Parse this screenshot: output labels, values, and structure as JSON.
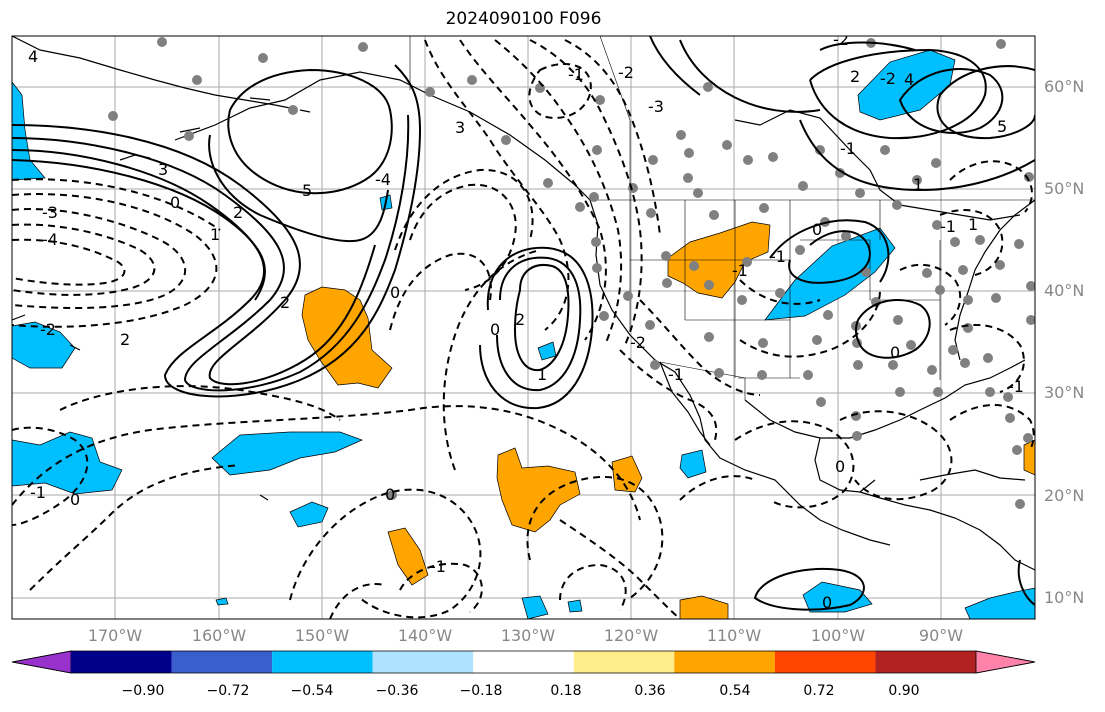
{
  "title": "2024090100 F096",
  "map": {
    "lat_labels": [
      "60°N",
      "50°N",
      "40°N",
      "30°N",
      "20°N",
      "10°N"
    ],
    "lon_labels": [
      "170°W",
      "160°W",
      "150°W",
      "140°W",
      "130°W",
      "120°W",
      "110°W",
      "100°W",
      "90°W"
    ],
    "contour_labels": [
      "4",
      "3",
      "-4",
      "3",
      "-3",
      "0",
      "5",
      "-4",
      "2",
      "1",
      "-2",
      "2",
      "2",
      "0",
      "0",
      "1",
      "-1",
      "2",
      "-2",
      "4",
      "5",
      "2",
      "-1",
      "-2",
      "-3",
      "0",
      "0",
      "-2",
      "-2",
      "-1",
      "1",
      "1",
      "-1",
      "-1",
      "0",
      "0",
      "-1",
      "0",
      "-1",
      "-1",
      "0",
      "-1"
    ],
    "colors": {
      "positive_shading": "#ffa500",
      "negative_shading": "#00bfff",
      "contour": "#000000",
      "gridline": "#aaaaaa",
      "station_marker": "#808080",
      "axis_label": "#888888"
    }
  },
  "colorbar": {
    "ticks": [
      "−0.90",
      "−0.72",
      "−0.54",
      "−0.36",
      "−0.18",
      "0.18",
      "0.36",
      "0.54",
      "0.72",
      "0.90"
    ],
    "colors": [
      "#9932cc",
      "#00008b",
      "#3a5fcd",
      "#00bfff",
      "#b0e2ff",
      "#ffffff",
      "#ffec8b",
      "#ffa500",
      "#ff4500",
      "#b22222",
      "#ff82ab"
    ]
  }
}
